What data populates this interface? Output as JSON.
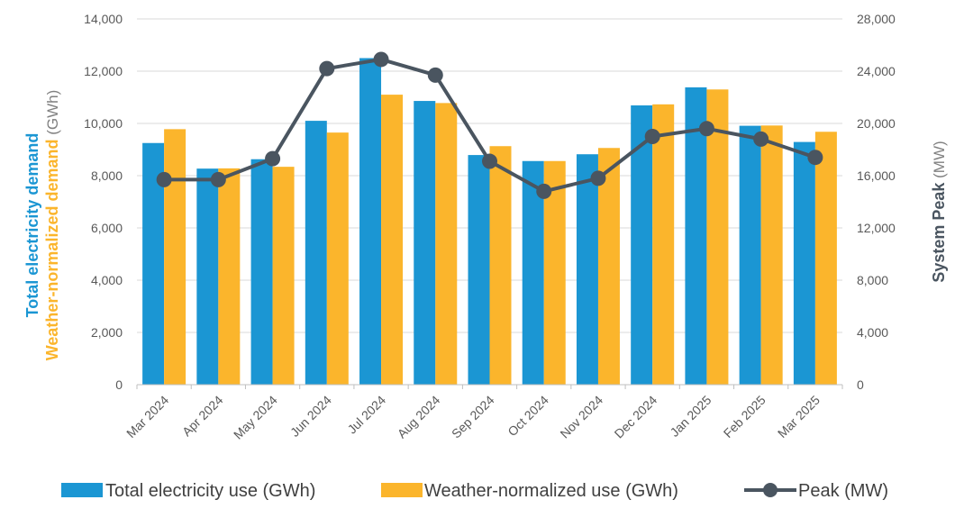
{
  "chart_data": {
    "type": "bar",
    "categories": [
      "Mar 2024",
      "Apr 2024",
      "May 2024",
      "Jun 2024",
      "Jul 2024",
      "Aug 2024",
      "Sep 2024",
      "Oct 2024",
      "Nov 2024",
      "Dec 2024",
      "Jan 2025",
      "Feb 2025",
      "Mar 2025"
    ],
    "series": [
      {
        "name": "Total electricity use (GWh)",
        "kind": "bar",
        "axis": "left",
        "color": "#1b96d3",
        "values": [
          9250,
          8270,
          8630,
          10100,
          12500,
          10860,
          8790,
          8560,
          8820,
          10690,
          11380,
          9910,
          9290
        ]
      },
      {
        "name": "Weather-normalized use (GWh)",
        "kind": "bar",
        "axis": "left",
        "color": "#fbb52c",
        "values": [
          9780,
          8280,
          8340,
          9650,
          11100,
          10780,
          9130,
          8560,
          9060,
          10730,
          11300,
          9920,
          9680
        ]
      },
      {
        "name": "Peak (MW)",
        "kind": "line",
        "axis": "right",
        "color": "#4a5560",
        "values": [
          15700,
          15700,
          17300,
          24200,
          24900,
          23700,
          17100,
          14800,
          15800,
          19000,
          19600,
          18800,
          17400
        ]
      }
    ],
    "y_left": {
      "ylim": [
        0,
        14000
      ],
      "ticks": [
        "0",
        "2,000",
        "4,000",
        "6,000",
        "8,000",
        "10,000",
        "12,000",
        "14,000"
      ],
      "label_line1": "Total electricity demand",
      "label_line2": "Weather-normalized demand",
      "label_unit": " (GWh)",
      "color_line1": "#1b96d3",
      "color_line2": "#fbb52c"
    },
    "y_right": {
      "ylim": [
        0,
        28000
      ],
      "ticks": [
        "0",
        "4,000",
        "8,000",
        "12,000",
        "16,000",
        "20,000",
        "24,000",
        "28,000"
      ],
      "label": "System Peak",
      "label_unit": " (MW)",
      "color": "#4a5560"
    },
    "grid": true,
    "legend": "bottom"
  }
}
